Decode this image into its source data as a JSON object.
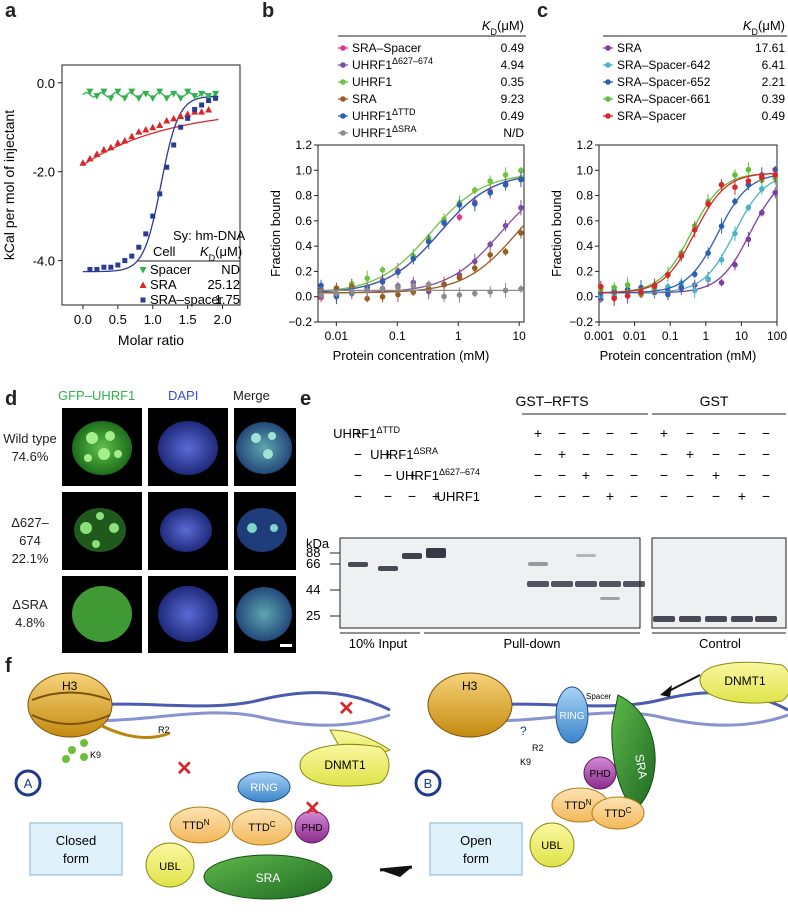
{
  "panels": {
    "a": "a",
    "b": "b",
    "c": "c",
    "d": "d",
    "e": "e",
    "f": "f"
  },
  "chart_data": [
    {
      "panel": "a",
      "type": "scatter",
      "ylabel": "kCal per mol of injectant",
      "xlabel": "Molar ratio",
      "xlim": [
        -0.3,
        2.25
      ],
      "ylim": [
        -5.0,
        0.4
      ],
      "xticks": [
        "0.0",
        "0.5",
        "1.0",
        "1.5",
        "2.0"
      ],
      "xtick_values": [
        0,
        0.5,
        1.0,
        1.5,
        2.0
      ],
      "yticks": [
        "0.0",
        "-2.0",
        "-4.0"
      ],
      "ytick_values": [
        0,
        -2,
        -4
      ],
      "legend_header": {
        "title": "Sy: hm-DNA",
        "col1": "Cell",
        "col2": "K_D(μM)"
      },
      "series": [
        {
          "name": "Spacer",
          "kd": "ND",
          "color": "#2eb34a",
          "marker": "triangle-down",
          "x": [
            0.1,
            0.2,
            0.3,
            0.4,
            0.5,
            0.6,
            0.7,
            0.8,
            0.9,
            1.0,
            1.1,
            1.2,
            1.3,
            1.4,
            1.5,
            1.6,
            1.7,
            1.8,
            1.9
          ],
          "y": [
            -0.2,
            -0.3,
            -0.2,
            -0.35,
            -0.2,
            -0.35,
            -0.2,
            -0.35,
            -0.25,
            -0.35,
            -0.2,
            -0.35,
            -0.25,
            -0.35,
            -0.2,
            -0.3,
            -0.25,
            -0.3,
            -0.25
          ]
        },
        {
          "name": "SRA",
          "kd": "25.12",
          "color": "#d9262b",
          "marker": "triangle-up",
          "x": [
            0.0,
            0.1,
            0.2,
            0.3,
            0.4,
            0.5,
            0.6,
            0.7,
            0.8,
            0.9,
            1.0,
            1.1,
            1.2,
            1.3,
            1.4,
            1.5,
            1.6,
            1.7,
            1.8
          ],
          "y": [
            -1.8,
            -1.7,
            -1.6,
            -1.5,
            -1.45,
            -1.35,
            -1.3,
            -1.2,
            -1.1,
            -1.05,
            -1.0,
            -0.95,
            -0.85,
            -0.8,
            -0.75,
            -0.7,
            -0.65,
            -0.65,
            -0.6
          ]
        },
        {
          "name": "SRA–spacer",
          "kd": "1.75",
          "color": "#2b3a93",
          "marker": "square",
          "x": [
            0.1,
            0.2,
            0.3,
            0.4,
            0.5,
            0.6,
            0.7,
            0.8,
            0.9,
            1.0,
            1.1,
            1.2,
            1.3,
            1.4,
            1.5,
            1.6,
            1.7,
            1.8,
            1.9
          ],
          "y": [
            -4.2,
            -4.2,
            -4.15,
            -4.15,
            -4.1,
            -4.0,
            -3.9,
            -3.7,
            -3.4,
            -3.0,
            -2.5,
            -1.9,
            -1.4,
            -1.0,
            -0.8,
            -0.6,
            -0.5,
            -0.4,
            -0.35
          ]
        }
      ]
    },
    {
      "panel": "b",
      "type": "scatter",
      "ylabel": "Fraction bound",
      "xlabel": "Protein concentration (mM)",
      "xscale": "log",
      "xlim": [
        0.005,
        12
      ],
      "ylim": [
        -0.2,
        1.2
      ],
      "xticks": [
        "0.01",
        "0.1",
        "1",
        "10"
      ],
      "xtick_values": [
        0.01,
        0.1,
        1,
        10
      ],
      "yticks": [
        "−0.2",
        "0.0",
        "0.2",
        "0.4",
        "0.6",
        "0.8",
        "1.0",
        "1.2"
      ],
      "ytick_values": [
        -0.2,
        0,
        0.2,
        0.4,
        0.6,
        0.8,
        1.0,
        1.2
      ],
      "legend_kd_header": "K_D(μM)",
      "series": [
        {
          "name": "SRA–Spacer",
          "kd": "0.49",
          "color": "#e8338a",
          "kd_num": 0.49
        },
        {
          "name": "UHRF1^Δ627–674",
          "kd": "4.94",
          "color": "#7b4fa6",
          "kd_num": 4.94
        },
        {
          "name": "UHRF1",
          "kd": "0.35",
          "color": "#70c23f",
          "kd_num": 0.35
        },
        {
          "name": "SRA",
          "kd": "9.23",
          "color": "#9a5a22",
          "kd_num": 9.23
        },
        {
          "name": "UHRF1^ΔTTD",
          "kd": "0.49",
          "color": "#2b5fb0",
          "kd_num": 0.49
        },
        {
          "name": "UHRF1^ΔSRA",
          "kd": "N/D",
          "color": "#8c8c8c",
          "kd_num": null
        }
      ]
    },
    {
      "panel": "c",
      "type": "scatter",
      "ylabel": "Fraction bound",
      "xlabel": "Protein concentration (mM)",
      "xscale": "log",
      "xlim": [
        0.001,
        100
      ],
      "ylim": [
        -0.2,
        1.2
      ],
      "xticks": [
        "0.001",
        "0.01",
        "0.1",
        "1",
        "10",
        "100"
      ],
      "xtick_values": [
        0.001,
        0.01,
        0.1,
        1,
        10,
        100
      ],
      "yticks": [
        "−0.2",
        "0.0",
        "0.2",
        "0.4",
        "0.6",
        "0.8",
        "1.0",
        "1.2"
      ],
      "ytick_values": [
        -0.2,
        0,
        0.2,
        0.4,
        0.6,
        0.8,
        1.0,
        1.2
      ],
      "legend_kd_header": "K_D(μM)",
      "series": [
        {
          "name": "SRA",
          "kd": "17.61",
          "color": "#7b3fa0",
          "kd_num": 17.61
        },
        {
          "name": "SRA–Spacer-642",
          "kd": "6.41",
          "color": "#4cb5c5",
          "kd_num": 6.41
        },
        {
          "name": "SRA–Spacer-652",
          "kd": "2.21",
          "color": "#2b5fb0",
          "kd_num": 2.21
        },
        {
          "name": "SRA–Spacer-661",
          "kd": "0.39",
          "color": "#5cbf3a",
          "kd_num": 0.39
        },
        {
          "name": "SRA–Spacer",
          "kd": "0.49",
          "color": "#d9262b",
          "kd_num": 0.49
        }
      ]
    }
  ],
  "panel_d": {
    "columns": [
      "GFP–UHRF1",
      "DAPI",
      "Merge"
    ],
    "column_colors": [
      "#2eb34a",
      "#3b4fc0",
      "#222222"
    ],
    "rows": [
      {
        "label1": "Wild type",
        "label2": "74.6%"
      },
      {
        "label1": "Δ627–674",
        "label2": "22.1%"
      },
      {
        "label1": "ΔSRA",
        "label2": "4.8%"
      }
    ]
  },
  "panel_e": {
    "groups": [
      "GST–RFTS",
      "GST"
    ],
    "row_labels": [
      "UHRF1^ΔTTD",
      "UHRF1^ΔSRA",
      "UHRF1^Δ627–674",
      "UHRF1"
    ],
    "kda_label": "kDa",
    "markers": [
      "88",
      "66",
      "44",
      "25"
    ],
    "bottom_labels": [
      "10% Input",
      "Pull-down",
      "Control"
    ],
    "plus": "+",
    "minus": "−"
  },
  "panel_f": {
    "labels": {
      "h3": "H3",
      "k9": "K9",
      "r2": "R2",
      "ring": "RING",
      "ttdn": "TTD",
      "ttdc": "TTD",
      "sup_n": "N",
      "sup_c": "C",
      "spacer": "Spacer",
      "phd": "PHD",
      "sra": "SRA",
      "ubl": "UBL",
      "dnmt1": "DNMT1",
      "state_a": "A",
      "state_b": "B",
      "closed": "Closed form",
      "open": "Open form",
      "question": "?"
    }
  }
}
